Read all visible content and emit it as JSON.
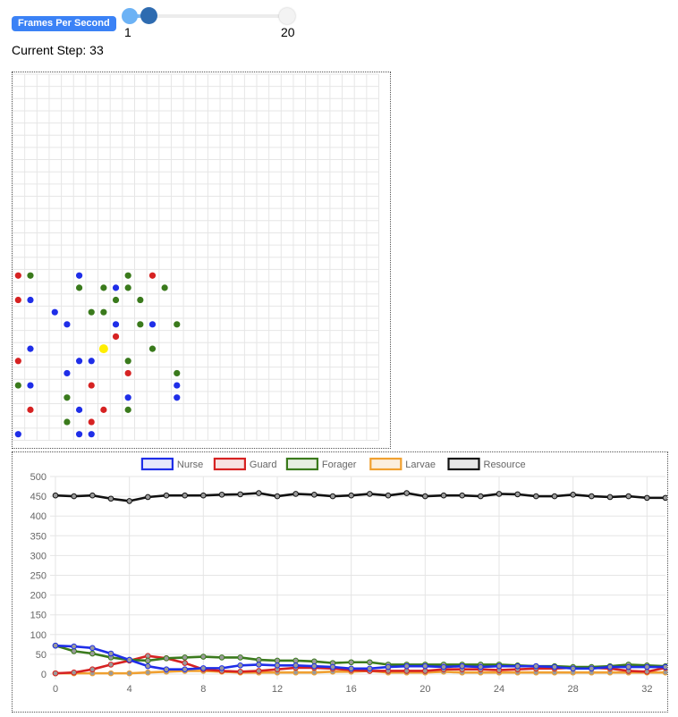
{
  "controls": {
    "fps_label": "Frames Per Second",
    "fps_min_label": "1",
    "fps_max_label": "20",
    "fps_value": 2,
    "step_text": "Current Step: 33"
  },
  "grid": {
    "columns": 30,
    "rows": 30,
    "agents": [
      {
        "c": 0,
        "r": 16,
        "t": "guard"
      },
      {
        "c": 1,
        "r": 16,
        "t": "forager"
      },
      {
        "c": 5,
        "r": 16,
        "t": "nurse"
      },
      {
        "c": 9,
        "r": 16,
        "t": "forager"
      },
      {
        "c": 11,
        "r": 16,
        "t": "guard"
      },
      {
        "c": 5,
        "r": 17,
        "t": "forager"
      },
      {
        "c": 7,
        "r": 17,
        "t": "forager"
      },
      {
        "c": 8,
        "r": 17,
        "t": "nurse"
      },
      {
        "c": 9,
        "r": 17,
        "t": "forager"
      },
      {
        "c": 12,
        "r": 17,
        "t": "forager"
      },
      {
        "c": 0,
        "r": 18,
        "t": "guard"
      },
      {
        "c": 1,
        "r": 18,
        "t": "nurse"
      },
      {
        "c": 8,
        "r": 18,
        "t": "forager"
      },
      {
        "c": 10,
        "r": 18,
        "t": "forager"
      },
      {
        "c": 3,
        "r": 19,
        "t": "nurse"
      },
      {
        "c": 6,
        "r": 19,
        "t": "forager"
      },
      {
        "c": 7,
        "r": 19,
        "t": "forager"
      },
      {
        "c": 4,
        "r": 20,
        "t": "nurse"
      },
      {
        "c": 8,
        "r": 20,
        "t": "nurse"
      },
      {
        "c": 10,
        "r": 20,
        "t": "forager"
      },
      {
        "c": 11,
        "r": 20,
        "t": "nurse"
      },
      {
        "c": 13,
        "r": 20,
        "t": "forager"
      },
      {
        "c": 8,
        "r": 21,
        "t": "guard"
      },
      {
        "c": 1,
        "r": 22,
        "t": "nurse"
      },
      {
        "c": 7,
        "r": 22,
        "t": "resource"
      },
      {
        "c": 11,
        "r": 22,
        "t": "forager"
      },
      {
        "c": 0,
        "r": 23,
        "t": "guard"
      },
      {
        "c": 5,
        "r": 23,
        "t": "nurse"
      },
      {
        "c": 6,
        "r": 23,
        "t": "nurse"
      },
      {
        "c": 9,
        "r": 23,
        "t": "forager"
      },
      {
        "c": 4,
        "r": 24,
        "t": "nurse"
      },
      {
        "c": 9,
        "r": 24,
        "t": "guard"
      },
      {
        "c": 13,
        "r": 24,
        "t": "forager"
      },
      {
        "c": 0,
        "r": 25,
        "t": "forager"
      },
      {
        "c": 1,
        "r": 25,
        "t": "nurse"
      },
      {
        "c": 6,
        "r": 25,
        "t": "guard"
      },
      {
        "c": 13,
        "r": 25,
        "t": "nurse"
      },
      {
        "c": 4,
        "r": 26,
        "t": "forager"
      },
      {
        "c": 9,
        "r": 26,
        "t": "nurse"
      },
      {
        "c": 13,
        "r": 26,
        "t": "nurse"
      },
      {
        "c": 1,
        "r": 27,
        "t": "guard"
      },
      {
        "c": 5,
        "r": 27,
        "t": "nurse"
      },
      {
        "c": 7,
        "r": 27,
        "t": "guard"
      },
      {
        "c": 9,
        "r": 27,
        "t": "forager"
      },
      {
        "c": 4,
        "r": 28,
        "t": "forager"
      },
      {
        "c": 6,
        "r": 28,
        "t": "guard"
      },
      {
        "c": 0,
        "r": 29,
        "t": "nurse"
      },
      {
        "c": 5,
        "r": 29,
        "t": "nurse"
      },
      {
        "c": 6,
        "r": 29,
        "t": "nurse"
      }
    ]
  },
  "colors": {
    "nurse": "#1f2ee8",
    "guard": "#d62222",
    "forager": "#3a7a1c",
    "larvae": "#f0a030",
    "resource": "#ffee00",
    "resource_line": "#111111",
    "grid_line": "#e6e6e6",
    "axis_text": "#666666"
  },
  "chart_data": {
    "type": "line",
    "x": [
      0,
      1,
      2,
      3,
      4,
      5,
      6,
      7,
      8,
      9,
      10,
      11,
      12,
      13,
      14,
      15,
      16,
      17,
      18,
      19,
      20,
      21,
      22,
      23,
      24,
      25,
      26,
      27,
      28,
      29,
      30,
      31,
      32,
      33
    ],
    "ylim": [
      0,
      500
    ],
    "xlim": [
      0,
      33
    ],
    "y_ticks": [
      "0",
      "50",
      "100",
      "150",
      "200",
      "250",
      "300",
      "350",
      "400",
      "450",
      "500"
    ],
    "x_ticks": [
      "0",
      "4",
      "8",
      "12",
      "16",
      "20",
      "24",
      "28",
      "32"
    ],
    "grid": true,
    "legend_position": "top",
    "series": [
      {
        "name": "Nurse",
        "color": "#1f2ee8",
        "values": [
          72,
          70,
          66,
          52,
          36,
          20,
          12,
          12,
          15,
          15,
          22,
          24,
          22,
          22,
          20,
          18,
          14,
          14,
          18,
          20,
          20,
          18,
          20,
          18,
          20,
          20,
          20,
          18,
          14,
          14,
          18,
          18,
          18,
          18
        ]
      },
      {
        "name": "Guard",
        "color": "#d62222",
        "values": [
          2,
          4,
          12,
          24,
          34,
          46,
          40,
          28,
          12,
          8,
          6,
          8,
          12,
          16,
          16,
          14,
          10,
          8,
          8,
          8,
          8,
          12,
          12,
          12,
          10,
          12,
          14,
          14,
          16,
          16,
          14,
          8,
          6,
          16
        ]
      },
      {
        "name": "Forager",
        "color": "#3a7a1c",
        "values": [
          72,
          58,
          52,
          42,
          36,
          34,
          40,
          42,
          44,
          42,
          42,
          36,
          34,
          34,
          32,
          28,
          30,
          30,
          24,
          24,
          24,
          24,
          24,
          24,
          24,
          22,
          20,
          20,
          18,
          18,
          20,
          24,
          22,
          20
        ]
      },
      {
        "name": "Larvae",
        "color": "#f0a030",
        "values": [
          2,
          2,
          2,
          2,
          2,
          4,
          6,
          8,
          8,
          6,
          4,
          4,
          4,
          4,
          4,
          6,
          6,
          8,
          4,
          4,
          4,
          6,
          4,
          4,
          4,
          4,
          4,
          4,
          4,
          4,
          4,
          4,
          4,
          4
        ]
      },
      {
        "name": "Resource",
        "color": "#111111",
        "values": [
          452,
          450,
          452,
          444,
          438,
          448,
          452,
          452,
          452,
          454,
          455,
          458,
          450,
          456,
          454,
          450,
          452,
          456,
          452,
          458,
          450,
          452,
          452,
          450,
          456,
          455,
          450,
          450,
          454,
          450,
          448,
          450,
          446,
          446
        ]
      }
    ]
  }
}
